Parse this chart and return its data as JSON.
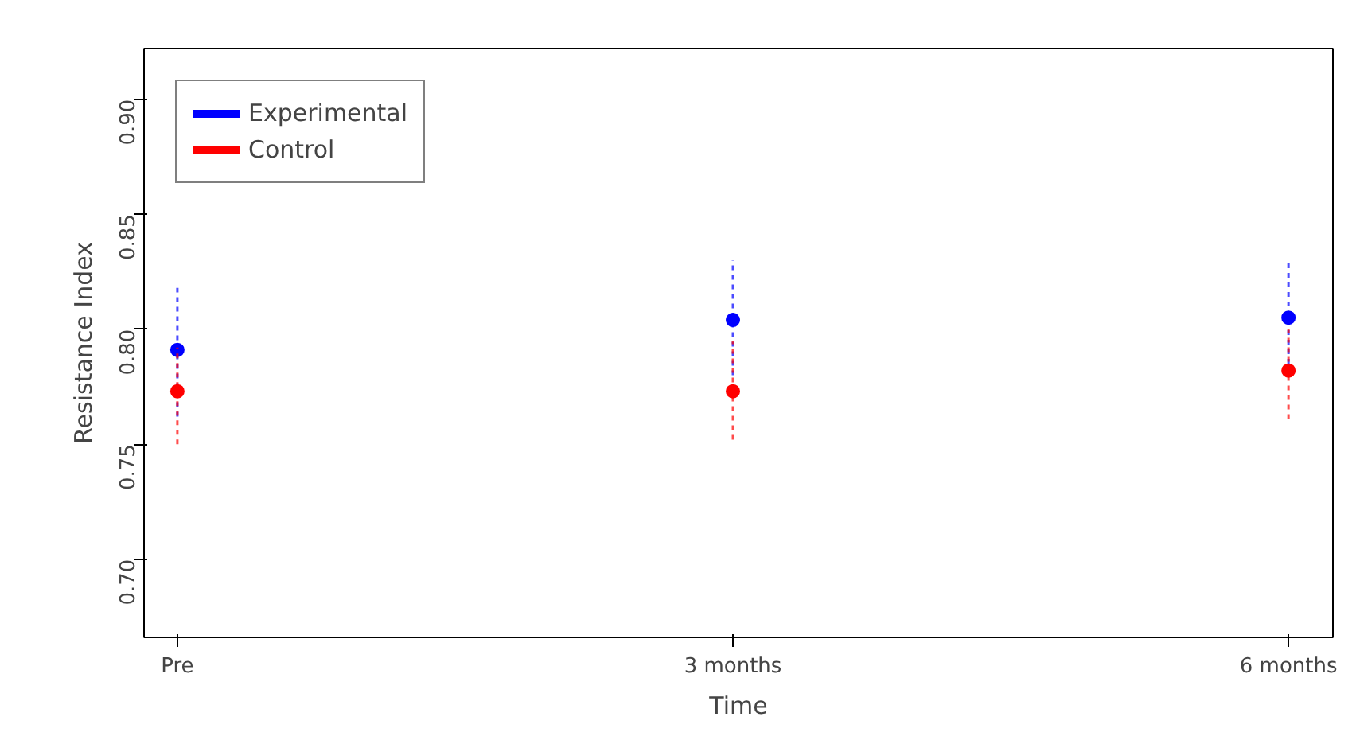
{
  "chart_data": {
    "type": "scatter",
    "xlabel": "Time",
    "ylabel": "Resistance Index",
    "categories": [
      "Pre",
      "3 months",
      "6 months"
    ],
    "ylim": [
      0.666,
      0.922
    ],
    "yticks": [
      {
        "value": 0.7,
        "label": "0.70"
      },
      {
        "value": 0.75,
        "label": "0.75"
      },
      {
        "value": 0.8,
        "label": "0.80"
      },
      {
        "value": 0.85,
        "label": "0.85"
      },
      {
        "value": 0.9,
        "label": "0.90"
      }
    ],
    "marker": "circle",
    "series": [
      {
        "name": "Experimental",
        "color": "#0000ff",
        "values": [
          0.791,
          0.804,
          0.805
        ],
        "errors": [
          [
            0.762,
            0.818
          ],
          [
            0.78,
            0.83
          ],
          [
            0.785,
            0.829
          ]
        ]
      },
      {
        "name": "Control",
        "color": "#ff0000",
        "values": [
          0.773,
          0.773,
          0.782
        ],
        "errors": [
          [
            0.75,
            0.792
          ],
          [
            0.752,
            0.795
          ],
          [
            0.761,
            0.8
          ]
        ]
      }
    ],
    "grid": false,
    "legend": "top left"
  }
}
